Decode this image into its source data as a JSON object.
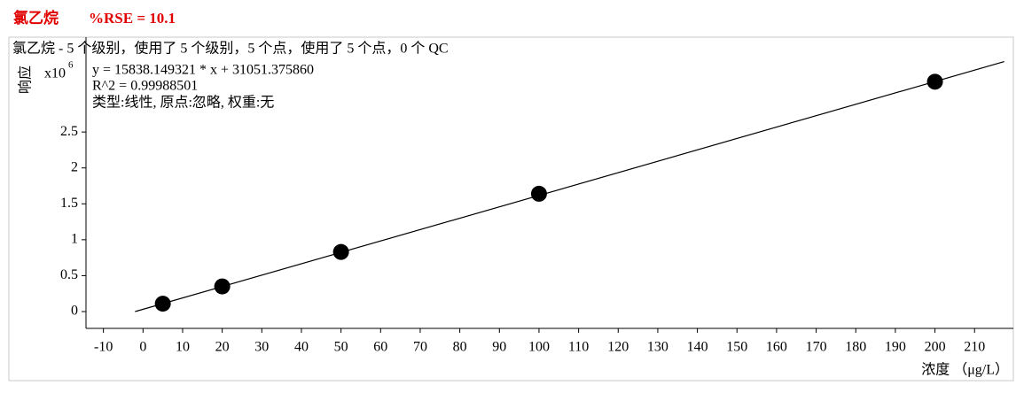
{
  "chart_data": {
    "type": "scatter",
    "title": "氯乙烷",
    "subtitle": "%RSE = 10.1",
    "summary": "氯乙烷 - 5 个级别，使用了 5 个级别，5 个点，使用了 5 个点，0 个 QC",
    "equation": "y = 15838.149321 * x  + 31051.375860",
    "r_squared": "R^2 = 0.99988501",
    "fit_info": "类型:线性, 原点:忽略, 权重:无",
    "y_label": "响应",
    "y_scale": {
      "base": "x10",
      "exponent": "6"
    },
    "x_label": "浓度 （μg/L）",
    "x": [
      5,
      20,
      50,
      100,
      200
    ],
    "values": [
      0.11,
      0.35,
      0.83,
      1.64,
      3.2
    ],
    "color": "#000000",
    "fit_line": {
      "x": [
        -2,
        217.5
      ],
      "y": [
        0,
        3.48
      ],
      "color": "#000000"
    },
    "xlim": [
      -14.4,
      219.8
    ],
    "ylim": [
      -0.234,
      3.82
    ],
    "xticks": [
      -10,
      0,
      10,
      20,
      30,
      40,
      50,
      60,
      70,
      80,
      90,
      100,
      110,
      120,
      130,
      140,
      150,
      160,
      170,
      180,
      190,
      200,
      210
    ],
    "yticks": [
      0,
      0.5,
      1,
      1.5,
      2,
      2.5
    ]
  }
}
